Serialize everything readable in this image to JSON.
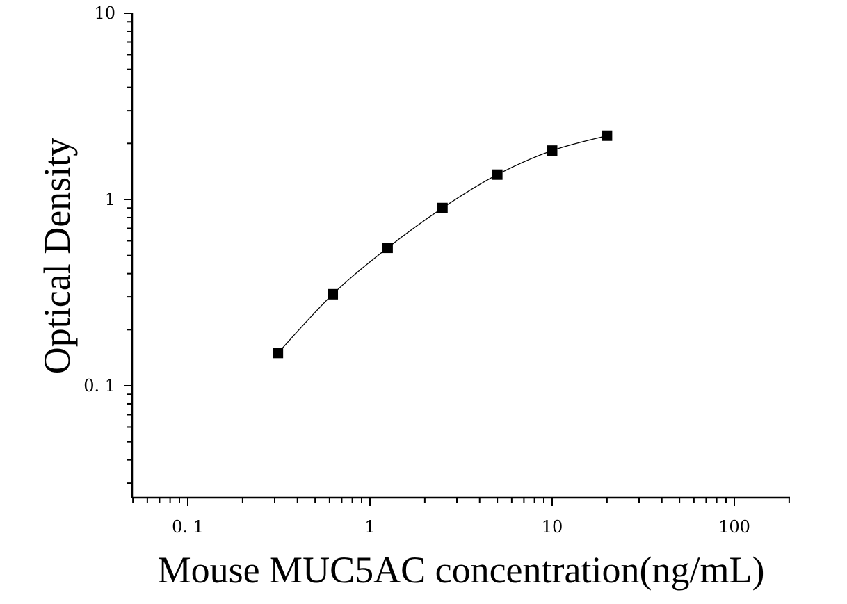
{
  "chart_data": {
    "type": "scatter",
    "title": "",
    "xlabel": "Mouse MUC5AC concentration(ng/mL)",
    "ylabel": "Optical Density",
    "x_scale": "log",
    "y_scale": "log",
    "xlim": [
      0.05,
      200
    ],
    "ylim": [
      0.025,
      10
    ],
    "x_ticks": [
      {
        "value": 0.1,
        "label": "0. 1"
      },
      {
        "value": 1,
        "label": "1"
      },
      {
        "value": 10,
        "label": "10"
      },
      {
        "value": 100,
        "label": "100"
      }
    ],
    "y_ticks": [
      {
        "value": 0.1,
        "label": "0. 1"
      },
      {
        "value": 1,
        "label": "1"
      },
      {
        "value": 10,
        "label": "10"
      }
    ],
    "grid": false,
    "legend": "none",
    "marker": "square",
    "marker_color": "#000000",
    "line_color": "#000000",
    "series": [
      {
        "x": [
          0.3125,
          0.625,
          1.25,
          2.5,
          5,
          10,
          20
        ],
        "y": [
          0.15,
          0.31,
          0.55,
          0.9,
          1.36,
          1.83,
          2.2
        ]
      }
    ]
  }
}
